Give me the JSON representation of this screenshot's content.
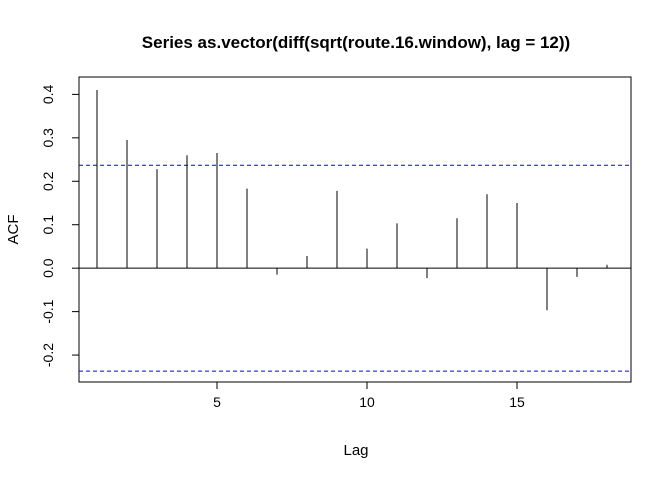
{
  "chart_data": {
    "type": "bar",
    "title": "Series as.vector(diff(sqrt(route.16.window), lag = 12))",
    "xlabel": "Lag",
    "ylabel": "ACF",
    "xlim": [
      0.4,
      18.8
    ],
    "ylim": [
      -0.262,
      0.44
    ],
    "xticks": [
      5,
      10,
      15
    ],
    "xtick_labels": [
      "5",
      "10",
      "15"
    ],
    "yticks": [
      -0.2,
      -0.1,
      0.0,
      0.1,
      0.2,
      0.3,
      0.4
    ],
    "ytick_labels": [
      "-0.2",
      "-0.1",
      "0.0",
      "0.1",
      "0.2",
      "0.3",
      "0.4"
    ],
    "confidence_bound": 0.237,
    "lags": [
      1,
      2,
      3,
      4,
      5,
      6,
      7,
      8,
      9,
      10,
      11,
      12,
      13,
      14,
      15,
      16,
      17,
      18
    ],
    "acf": [
      0.41,
      0.295,
      0.228,
      0.26,
      0.265,
      0.183,
      -0.015,
      0.028,
      0.178,
      0.045,
      0.103,
      -0.023,
      0.115,
      0.17,
      0.15,
      -0.097,
      -0.02,
      0.008
    ],
    "colors": {
      "bars": "#000000",
      "zero_line": "#000000",
      "confidence_lines": "#0000ff",
      "box": "#000000"
    }
  }
}
